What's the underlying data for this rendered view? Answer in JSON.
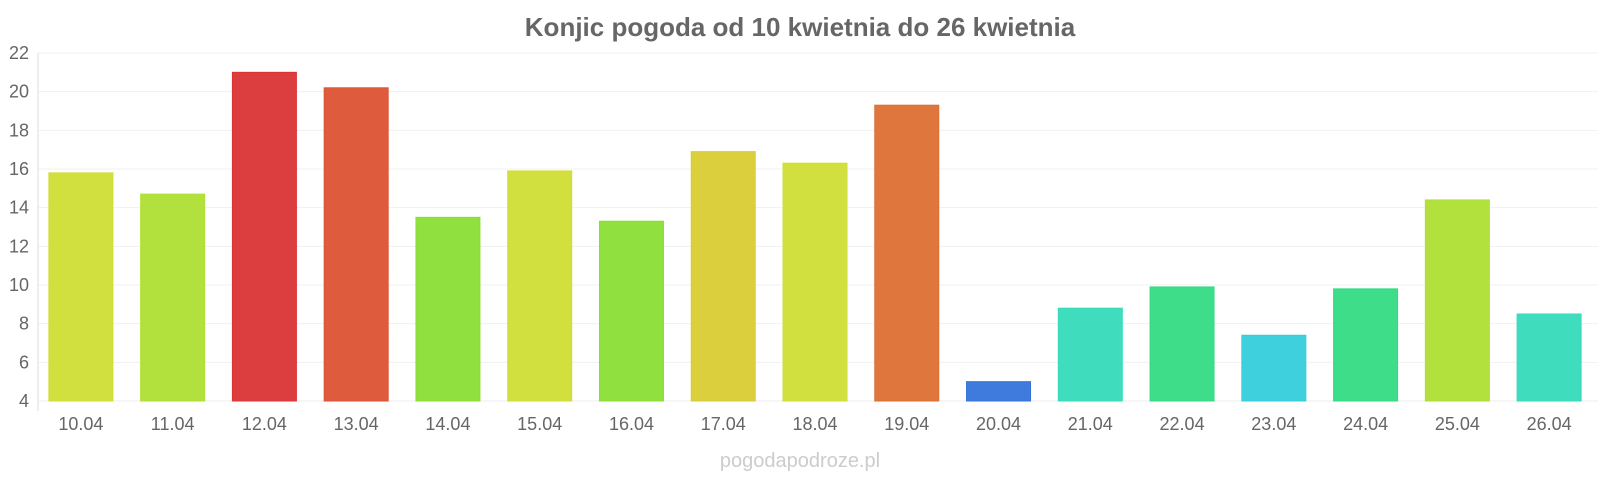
{
  "chart_data": {
    "type": "bar",
    "title": "Konjic pogoda od 10 kwietnia do 26 kwietnia",
    "xlabel": "",
    "ylabel": "",
    "categories": [
      "10.04",
      "11.04",
      "12.04",
      "13.04",
      "14.04",
      "15.04",
      "16.04",
      "17.04",
      "18.04",
      "19.04",
      "20.04",
      "21.04",
      "22.04",
      "23.04",
      "24.04",
      "25.04",
      "26.04"
    ],
    "values": [
      15.8,
      14.7,
      21.0,
      20.2,
      13.5,
      15.9,
      13.3,
      16.9,
      16.3,
      19.3,
      5.0,
      8.8,
      9.9,
      7.4,
      9.8,
      14.4,
      8.5
    ],
    "bar_colors": [
      "#cfde35",
      "#aedf33",
      "#da3435",
      "#dc5234",
      "#8ade35",
      "#cfde35",
      "#8ade35",
      "#d9cc33",
      "#cfde35",
      "#dc6f34",
      "#3474da",
      "#35dbb9",
      "#33db83",
      "#34ceda",
      "#33db83",
      "#aedf33",
      "#35dbb9"
    ],
    "ylim": [
      4,
      22
    ],
    "yticks": [
      4,
      6,
      8,
      10,
      12,
      14,
      16,
      18,
      20,
      22
    ],
    "grid": true,
    "legend": "none"
  },
  "watermark": "pogodapodroze.pl"
}
